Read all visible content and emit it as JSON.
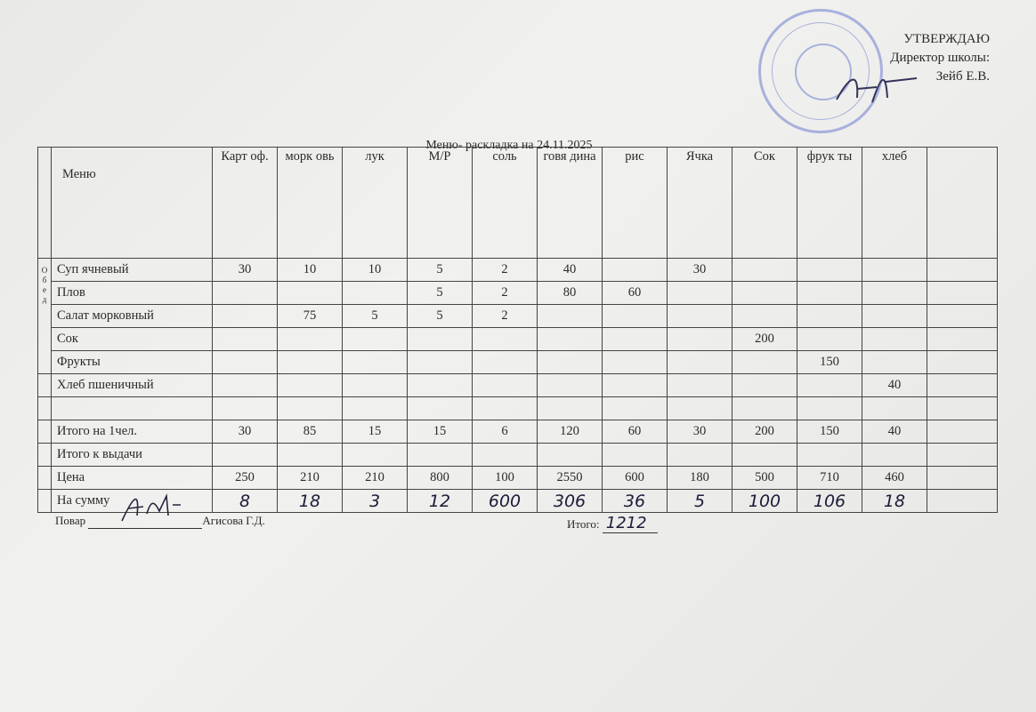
{
  "approval": {
    "title": "УТВЕРЖДАЮ",
    "position": "Директор школы:",
    "name": "Зейб Е.В."
  },
  "document_title": "Меню- раскладка на 24.11.2025",
  "table": {
    "headers": [
      "Меню",
      "Карт оф.",
      "морк овь",
      "лук",
      "М/Р",
      "соль",
      "говя дина",
      "рис",
      "Ячка",
      "Сок",
      "фрук ты",
      "хлеб",
      ""
    ],
    "section_label": "О б е д",
    "rows": [
      {
        "name": "Суп ячневый",
        "cells": [
          "30",
          "10",
          "10",
          "5",
          "2",
          "40",
          "",
          "30",
          "",
          "",
          "",
          ""
        ]
      },
      {
        "name": "Плов",
        "cells": [
          "",
          "",
          "",
          "5",
          "2",
          "80",
          "60",
          "",
          "",
          "",
          "",
          ""
        ]
      },
      {
        "name": "Салат морковный",
        "cells": [
          "",
          "75",
          "5",
          "5",
          "2",
          "",
          "",
          "",
          "",
          "",
          "",
          ""
        ]
      },
      {
        "name": "Сок",
        "cells": [
          "",
          "",
          "",
          "",
          "",
          "",
          "",
          "",
          "200",
          "",
          "",
          ""
        ]
      },
      {
        "name": "Фрукты",
        "cells": [
          "",
          "",
          "",
          "",
          "",
          "",
          "",
          "",
          "",
          "150",
          "",
          ""
        ]
      },
      {
        "name": "Хлеб пшеничный",
        "cells": [
          "",
          "",
          "",
          "",
          "",
          "",
          "",
          "",
          "",
          "",
          "40",
          ""
        ]
      },
      {
        "name": "",
        "cells": [
          "",
          "",
          "",
          "",
          "",
          "",
          "",
          "",
          "",
          "",
          "",
          ""
        ]
      },
      {
        "name": "Итого на 1чел.",
        "cells": [
          "30",
          "85",
          "15",
          "15",
          "6",
          "120",
          "60",
          "30",
          "200",
          "150",
          "40",
          ""
        ]
      },
      {
        "name": "Итого к выдачи",
        "cells": [
          "",
          "",
          "",
          "",
          "",
          "",
          "",
          "",
          "",
          "",
          "",
          ""
        ]
      },
      {
        "name": "Цена",
        "cells": [
          "250",
          "210",
          "210",
          "800",
          "100",
          "2550",
          "600",
          "180",
          "500",
          "710",
          "460",
          ""
        ]
      },
      {
        "name": "На сумму",
        "cells": [
          "8",
          "18",
          "3",
          "12",
          "600",
          "306",
          "36",
          "5",
          "100",
          "106",
          "18",
          ""
        ],
        "handwritten": true
      }
    ]
  },
  "footer": {
    "cook_label": "Повар",
    "cook_name": "Агисова Г.Д.",
    "total_label": "Итого:",
    "total_value": "1212"
  }
}
